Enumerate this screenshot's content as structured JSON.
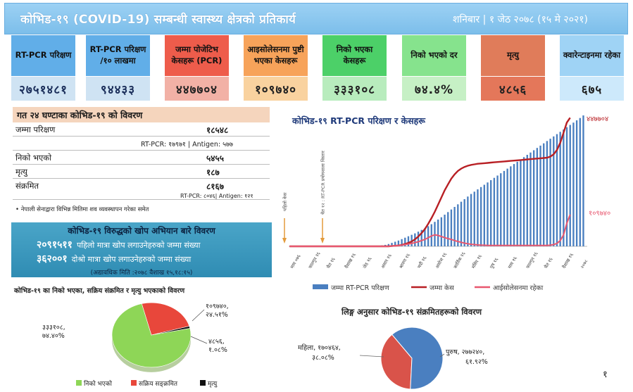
{
  "header": {
    "title": "कोभिड-१९ (COVID-19) सम्बन्धी स्वास्थ्य क्षेत्रको प्रतिकार्य",
    "date": "शनिबार | १ जेठ २०७८ (१५ मे २०२१)"
  },
  "cards": [
    {
      "label": "RT-PCR परिक्षण",
      "value": "२७५१४८१",
      "color": "#61aee8"
    },
    {
      "label": "RT-PCR परिक्षण /१० लाखमा",
      "value": "९४४३३",
      "color": "#61aee8"
    },
    {
      "label": "जम्मा पोजेटिभ केसहरू (PCR)",
      "value": "४४७७०४",
      "color": "#ee5c4b"
    },
    {
      "label": "आइसोलेसनमा पुष्टी भएका केसहरू",
      "value": "१०९७४०",
      "color": "#f7a35a"
    },
    {
      "label": "निको भएका केसहरू",
      "value": "३३३१०८",
      "color": "#4cd068"
    },
    {
      "label": "निको भएको दर",
      "value": "७४.४%",
      "color": "#86e38d"
    },
    {
      "label": "मृत्यु",
      "value": "४८५६",
      "color": "#e07c5a"
    },
    {
      "label": "क्वारेन्टाइनमा रहेका",
      "value": "६७५",
      "color": "#9fd3f5"
    }
  ],
  "last24": {
    "title": "गत २४ घण्टाका कोभिड-१९ को विवरण",
    "rows": [
      {
        "label": "जम्मा परिक्षण",
        "value": "१८५४८"
      },
      {
        "label": "निको भएको",
        "value": "५४५५"
      },
      {
        "label": "मृत्यु",
        "value": "१८७"
      },
      {
        "label": "संक्रमित",
        "value": "८१६७"
      }
    ],
    "test_breakdown": "RT-PCR: १७९७१ | Antigen: ५७७",
    "infected_breakdown": "RT-PCR: ८०४६| Antigen: १२१",
    "note": "• नेपाली सेनाद्वारा विभिन्न मितिमा शव व्यवस्थापन गरेका समेत"
  },
  "vaccine": {
    "title": "कोभिड-१९ विरुद्धको खोप अभियान बारे विवरण",
    "first_value": "२०९१५११",
    "first_label": "पहिलो मात्रा खोप लगाउनेहरुको जम्मा संख्या",
    "second_value": "३६२००१",
    "second_label": "दोश्रो मात्रा खोप लगाउनेहरुको जम्मा संख्या",
    "note": "(अद्यावधिक मिति :२०७८ वैशाख १५,१८:१५)"
  },
  "status_pie": {
    "title": "कोभिड-१९ का निको भएका, सक्रिय संक्रमित र मृत्यु भएकाको विवरण",
    "slices": [
      {
        "name": "निको भएको",
        "value": 333108,
        "label": "३३३१०८,",
        "pct": "७४.४०%",
        "color": "#8ed657"
      },
      {
        "name": "सक्रिय सङ्क्रमित",
        "value": 109740,
        "label": "१०९७४०,",
        "pct": "२४.५१%",
        "color": "#e8473b"
      },
      {
        "name": "मृत्यु",
        "value": 4856,
        "label": "४८५६,",
        "pct": "१.०८%",
        "color": "#111111"
      }
    ]
  },
  "gender_pie": {
    "title": "लिङ्ग अनुसार कोभिड-१९ संक्रमितहरूको विवरण",
    "slices": [
      {
        "name": "महिला",
        "value": 170464,
        "label": "महिला, १७०४६४,",
        "pct": "३८.०८%",
        "color": "#d9534a"
      },
      {
        "name": "पुरुष",
        "value": 277240,
        "label": "पुरुष, २७७२४०,",
        "pct": "६१.९२%",
        "color": "#4a7fc0"
      }
    ]
  },
  "chart_data": {
    "type": "bar",
    "title": "कोभिड-१९ RT-PCR परिक्षण र केसहरू",
    "annotations": [
      "पहिलो केस",
      "चैत १२ : RT-PCR प्रयोगशाला विस्तार"
    ],
    "x_labels": [
      "माघ ०७६",
      "फाल्गुन १६",
      "चैत १६",
      "वैशाख १६",
      "जेठ १६",
      "असार १६",
      "श्रावण १६",
      "भदौ १६",
      "असोज १६",
      "कार्तिक १६",
      "मंसिर १६",
      "पुष १६",
      "माघ १६",
      "फाल्गुन १६",
      "चैत १६",
      "वैशाख १६",
      "२०७८"
    ],
    "series": [
      {
        "name": "जम्मा RT-PCR परिक्षण",
        "color": "#4a7fc0",
        "values": [
          0,
          0,
          0,
          0,
          0,
          0,
          0,
          0,
          0,
          0,
          0,
          0,
          0,
          0,
          0,
          0,
          0,
          0,
          0,
          0,
          0,
          0,
          0,
          0,
          0,
          0,
          1,
          2,
          3,
          5,
          8,
          12,
          16,
          20,
          25,
          30,
          35,
          40,
          45,
          51,
          57,
          63,
          70,
          77,
          85,
          93,
          101,
          110,
          119,
          128,
          137,
          146,
          155,
          164,
          173,
          182,
          190,
          198,
          206,
          214,
          222,
          230,
          238,
          246,
          254,
          262,
          270,
          278,
          286,
          294,
          302,
          310,
          318,
          326,
          334,
          342,
          350,
          358,
          366,
          374,
          382,
          390,
          398,
          406,
          414,
          422,
          430,
          438,
          446,
          455
        ]
      },
      {
        "name": "जम्मा केस",
        "color": "#b81f24",
        "values": [
          0,
          0,
          0,
          0,
          0,
          0,
          0,
          0,
          0,
          0,
          0,
          0,
          0,
          0,
          0,
          0,
          0,
          0,
          0,
          0,
          0,
          0,
          0,
          0,
          0,
          0,
          0,
          0,
          0,
          0,
          0,
          1,
          2,
          3,
          5,
          8,
          12,
          17,
          24,
          34,
          46,
          60,
          78,
          98,
          120,
          145,
          170,
          195,
          215,
          235,
          250,
          262,
          270,
          276,
          280,
          283,
          285,
          287,
          288,
          289,
          290,
          291,
          292,
          293,
          294,
          295,
          296,
          297,
          298,
          299,
          300,
          301,
          302,
          303,
          304,
          305,
          306,
          307,
          308,
          312,
          320,
          335,
          360,
          395,
          430,
          447
        ]
      },
      {
        "name": "आईसोलेसनमा रहेका",
        "color": "#e8576f",
        "values": [
          0,
          0,
          0,
          0,
          0,
          0,
          0,
          0,
          0,
          0,
          0,
          0,
          0,
          0,
          0,
          0,
          0,
          0,
          0,
          0,
          0,
          0,
          0,
          0,
          0,
          0,
          0,
          0,
          0,
          0,
          0,
          1,
          2,
          3,
          4,
          6,
          8,
          10,
          13,
          16,
          20,
          24,
          30,
          36,
          40,
          38,
          34,
          30,
          27,
          24,
          20,
          17,
          14,
          11,
          9,
          7,
          6,
          5,
          4,
          4,
          3,
          3,
          3,
          3,
          3,
          3,
          3,
          3,
          3,
          3,
          3,
          3,
          3,
          3,
          3,
          3,
          3,
          3,
          3,
          4,
          6,
          10,
          20,
          40,
          80,
          110
        ]
      }
    ],
    "end_labels": [
      "४४७७०४",
      "१०९७४०"
    ],
    "legend_position": "bottom"
  },
  "page_number": "१"
}
